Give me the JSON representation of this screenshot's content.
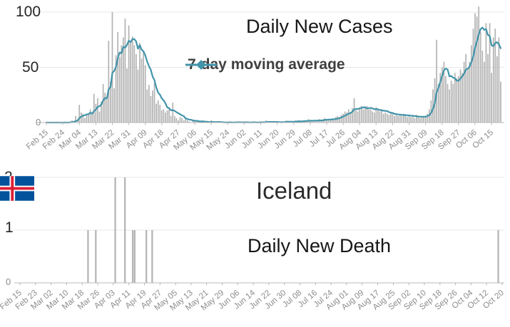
{
  "page": {
    "background": "#ffffff"
  },
  "chart_data": [
    {
      "type": "bar",
      "title": "Daily New Cases",
      "legend_label": "7-day moving average",
      "series": [
        {
          "name": "daily new cases",
          "kind": "bar"
        },
        {
          "name": "7-day moving average",
          "kind": "line",
          "derived": "trailing 7-day mean of daily values"
        }
      ],
      "start_date": "Feb 15",
      "end_date": "Oct 20",
      "x_tick_interval_days": 9,
      "x_tick_labels": [
        "Feb 15",
        "Feb 24",
        "Mar 04",
        "Mar 13",
        "Mar 22",
        "Mar 31",
        "Apr 09",
        "Apr 18",
        "Apr 27",
        "May 06",
        "May 15",
        "May 24",
        "Jun 02",
        "Jun 11",
        "Jun 20",
        "Jun 29",
        "Jul 08",
        "Jul 17",
        "Jul 26",
        "Aug 04",
        "Aug 13",
        "Aug 22",
        "Aug 31",
        "Sep 09",
        "Sep 18",
        "Sep 27",
        "Oct 06",
        "Oct 15"
      ],
      "ylim": [
        0,
        100
      ],
      "y_ticks": [
        0,
        50,
        100
      ],
      "y_tick_labels": [
        "0",
        "50",
        "100"
      ],
      "grid": true,
      "legend_position": "inside upper-center",
      "bar_color": "#b3b3b3",
      "line_color": "#4294aa",
      "values": [
        0,
        0,
        0,
        0,
        0,
        0,
        0,
        0,
        0,
        0,
        0,
        0,
        0,
        1,
        2,
        1,
        6,
        2,
        16,
        9,
        8,
        4,
        7,
        7,
        12,
        9,
        26,
        17,
        22,
        10,
        19,
        35,
        27,
        23,
        74,
        37,
        100,
        31,
        61,
        82,
        59,
        70,
        77,
        94,
        49,
        88,
        73,
        78,
        70,
        62,
        48,
        72,
        58,
        64,
        52,
        30,
        34,
        24,
        29,
        36,
        17,
        20,
        16,
        11,
        12,
        9,
        11,
        12,
        6,
        18,
        6,
        4,
        2,
        5,
        4,
        2,
        3,
        2,
        1,
        0,
        2,
        1,
        2,
        1,
        0,
        1,
        0,
        0,
        1,
        0,
        2,
        0,
        0,
        0,
        1,
        0,
        0,
        0,
        0,
        0,
        1,
        0,
        0,
        0,
        1,
        0,
        0,
        0,
        1,
        0,
        0,
        0,
        0,
        1,
        0,
        0,
        0,
        1,
        0,
        0,
        2,
        1,
        0,
        0,
        1,
        0,
        0,
        1,
        0,
        1,
        0,
        2,
        1,
        0,
        1,
        0,
        2,
        1,
        2,
        1,
        1,
        2,
        1,
        3,
        2,
        1,
        2,
        1,
        2,
        3,
        2,
        3,
        4,
        2,
        3,
        2,
        4,
        3,
        5,
        6,
        5,
        7,
        8,
        10,
        9,
        12,
        9,
        13,
        22,
        11,
        10,
        13,
        15,
        12,
        14,
        15,
        12,
        12,
        10,
        9,
        14,
        12,
        10,
        12,
        8,
        9,
        8,
        7,
        9,
        8,
        6,
        7,
        6,
        7,
        6,
        8,
        7,
        5,
        6,
        5,
        6,
        4,
        7,
        5,
        4,
        6,
        5,
        6,
        8,
        12,
        20,
        30,
        40,
        75,
        35,
        45,
        50,
        55,
        42,
        35,
        30,
        38,
        35,
        45,
        40,
        42,
        48,
        45,
        55,
        62,
        48,
        55,
        70,
        85,
        99,
        96,
        105,
        82,
        65,
        55,
        90,
        62,
        90,
        45,
        77,
        85,
        60,
        77,
        37
      ]
    },
    {
      "type": "bar",
      "title": "Daily New Death",
      "country": "Iceland",
      "flag_colors": {
        "blue": "#02529C",
        "white": "#ffffff",
        "red": "#DC1E35"
      },
      "start_date": "Feb 15",
      "end_date": "Oct 20",
      "x_tick_interval_days": 8,
      "x_tick_labels": [
        "Feb 15",
        "Feb 23",
        "Mar 02",
        "Mar 10",
        "Mar 18",
        "Mar 26",
        "Apr 03",
        "Apr 11",
        "Apr 19",
        "Apr 27",
        "May 05",
        "May 13",
        "May 21",
        "May 29",
        "Jun 06",
        "Jun 14",
        "Jun 22",
        "Jun 30",
        "Jul 08",
        "Jul 16",
        "Jul 24",
        "Aug 01",
        "Aug 09",
        "Aug 17",
        "Aug 25",
        "Sep 02",
        "Sep 10",
        "Sep 18",
        "Sep 26",
        "Oct 04",
        "Oct 12",
        "Oct 20"
      ],
      "ylim": [
        0,
        2
      ],
      "y_ticks": [
        0,
        1,
        2
      ],
      "y_tick_labels": [
        "0",
        "1",
        "2"
      ],
      "grid": true,
      "bar_color": "#b3b3b3",
      "death_events": [
        {
          "date": "Mar 21",
          "day_index": 35,
          "deaths": 1
        },
        {
          "date": "Mar 25",
          "day_index": 39,
          "deaths": 1
        },
        {
          "date": "Apr 04",
          "day_index": 49,
          "deaths": 2
        },
        {
          "date": "Apr 09",
          "day_index": 54,
          "deaths": 2
        },
        {
          "date": "Apr 13",
          "day_index": 58,
          "deaths": 1
        },
        {
          "date": "Apr 14",
          "day_index": 59,
          "deaths": 1
        },
        {
          "date": "Apr 20",
          "day_index": 65,
          "deaths": 1
        },
        {
          "date": "Apr 23",
          "day_index": 68,
          "deaths": 1
        },
        {
          "date": "Oct 18",
          "day_index": 246,
          "deaths": 1
        }
      ],
      "values_note": "all days not listed in death_events are 0"
    }
  ]
}
